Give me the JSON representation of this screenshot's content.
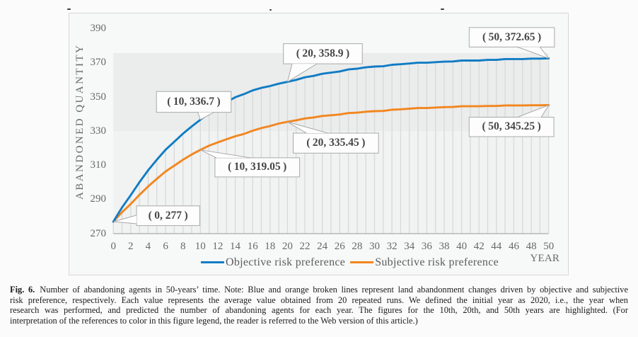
{
  "chart_data": {
    "type": "line",
    "title": "",
    "xlabel": "YEAR",
    "ylabel": "ABANDONED QUANTITY",
    "xlim": [
      0,
      50
    ],
    "ylim": [
      270,
      390
    ],
    "x_ticks": [
      0,
      2,
      4,
      6,
      8,
      10,
      12,
      14,
      16,
      18,
      20,
      22,
      24,
      26,
      28,
      30,
      32,
      34,
      36,
      38,
      40,
      42,
      44,
      46,
      48,
      50
    ],
    "y_ticks": [
      270,
      290,
      310,
      330,
      350,
      370,
      390
    ],
    "grid": "vertical drop lines from objective series to x-axis at every year",
    "legend_position": "bottom",
    "x": [
      0,
      1,
      2,
      3,
      4,
      5,
      6,
      7,
      8,
      9,
      10,
      11,
      12,
      13,
      14,
      15,
      16,
      17,
      18,
      19,
      20,
      21,
      22,
      23,
      24,
      25,
      26,
      27,
      28,
      29,
      30,
      31,
      32,
      33,
      34,
      35,
      36,
      37,
      38,
      39,
      40,
      41,
      42,
      43,
      44,
      45,
      46,
      47,
      48,
      49,
      50
    ],
    "series": [
      {
        "name": "Objective risk preference",
        "color": "#107cc4",
        "values": [
          277.0,
          285.29,
          292.51,
          300.11,
          307.05,
          313.34,
          319.15,
          323.8,
          328.53,
          332.78,
          336.7,
          340.61,
          343.87,
          346.96,
          349.84,
          351.73,
          353.86,
          355.37,
          356.43,
          357.83,
          358.9,
          360.06,
          361.53,
          362.38,
          363.63,
          364.29,
          364.99,
          366.14,
          366.6,
          367.37,
          367.85,
          368.01,
          368.86,
          369.2,
          369.61,
          370.1,
          370.1,
          370.41,
          370.72,
          370.84,
          371.37,
          371.37,
          371.37,
          371.74,
          371.74,
          372.24,
          372.24,
          372.24,
          372.48,
          372.48,
          372.65
        ]
      },
      {
        "name": "Subjective risk preference",
        "color": "#f2861f",
        "values": [
          277.0,
          282.51,
          287.34,
          292.69,
          297.63,
          302.15,
          306.39,
          309.81,
          313.29,
          316.36,
          319.05,
          321.55,
          323.43,
          325.21,
          327.02,
          328.39,
          330.27,
          331.8,
          333.02,
          334.45,
          335.45,
          336.36,
          337.45,
          338.02,
          338.9,
          339.31,
          339.77,
          340.59,
          340.86,
          341.4,
          341.74,
          341.85,
          342.54,
          342.82,
          343.17,
          343.56,
          343.56,
          343.82,
          344.07,
          344.16,
          344.57,
          344.57,
          344.57,
          344.76,
          344.76,
          345.09,
          345.09,
          345.09,
          345.18,
          345.18,
          345.25
        ]
      }
    ],
    "annotations": [
      {
        "label": "(0, 277)",
        "series": 0,
        "x": 0,
        "y": 277
      },
      {
        "label": "(10, 336.7)",
        "series": 0,
        "x": 10,
        "y": 336.7
      },
      {
        "label": "(20, 358.9)",
        "series": 0,
        "x": 20,
        "y": 358.9
      },
      {
        "label": "(50, 372.65)",
        "series": 0,
        "x": 50,
        "y": 372.65
      },
      {
        "label": "(10, 319.05)",
        "series": 1,
        "x": 10,
        "y": 319.05
      },
      {
        "label": "(20, 335.45)",
        "series": 1,
        "x": 20,
        "y": 335.45
      },
      {
        "label": "(50, 345.25)",
        "series": 1,
        "x": 50,
        "y": 345.25
      }
    ]
  },
  "colors": {
    "objective_line": "#107cc4",
    "subjective_line": "#f2861f",
    "axis_text": "#666666",
    "plot_band_upper": "#ebecec",
    "plot_band_lower": "#f1f2f2",
    "figure_background": "#f7f8f8",
    "drop_line": "#d8d9d9",
    "baseline": "#aaabab",
    "callout_border": "#a9a9a9",
    "callout_fill": "#fdfdfd"
  },
  "caption": {
    "fig_label": "Fig. 6.",
    "lines": [
      "Number of abandoning agents in 50-years’ time. Note: Blue and orange broken lines represent land abandonment changes driven by objective and subjective",
      "risk preference, respectively. Each value represents the average value obtained from 20 repeated runs. We defined the initial year as 2020, i.e., the year when",
      "research was performed, and predicted the number of abandoning agents for each year. The figures for the 10th, 20th, and 50th years are highlighted. (For",
      "interpretation of the references to color in this figure legend, the reader is referred to the Web version of this article.)"
    ]
  }
}
